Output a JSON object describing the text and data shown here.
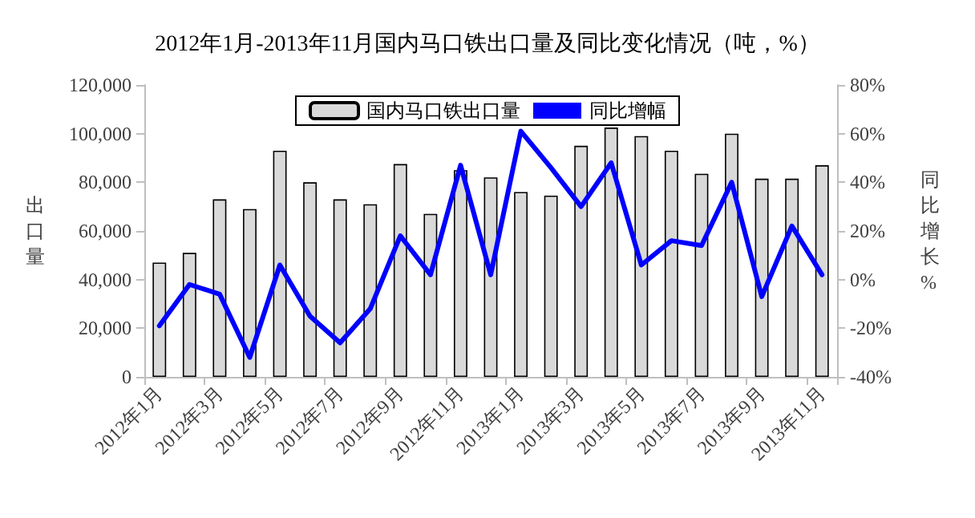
{
  "chart_data": {
    "type": "bar",
    "title": "2012年1月-2013年11月国内马口铁出口量及同比变化情况（吨，%）",
    "ylabel": "出口量",
    "y2label": "同比增长%",
    "categories": [
      "2012年1月",
      null,
      "2012年3月",
      null,
      "2012年5月",
      null,
      "2012年7月",
      null,
      "2012年9月",
      null,
      "2012年11月",
      null,
      "2013年1月",
      null,
      "2013年3月",
      null,
      "2013年5月",
      null,
      "2013年7月",
      null,
      "2013年9月",
      null,
      "2013年11月"
    ],
    "series": [
      {
        "name": "国内马口铁出口量",
        "color": "#d9d9d9",
        "values": [
          47000,
          51000,
          73000,
          69000,
          93000,
          80000,
          73000,
          71000,
          87500,
          67000,
          85000,
          82000,
          76000,
          74500,
          95000,
          102500,
          99000,
          93000,
          83500,
          100000,
          81500,
          81500,
          87000
        ]
      },
      {
        "name": "同比增幅",
        "type": "line",
        "axis": "y2",
        "color": "#0000ff",
        "values": [
          -19,
          -2,
          -6,
          -32,
          6,
          -15,
          -26,
          -12,
          18,
          2,
          47,
          2,
          61,
          46,
          30,
          48,
          6,
          16,
          14,
          40,
          -7,
          22,
          2
        ]
      }
    ],
    "ylim": [
      0,
      120000
    ],
    "yticks": [
      0,
      {
        "value": 20000,
        "label": "20,000"
      },
      {
        "value": 40000,
        "label": "40,000"
      },
      {
        "value": 60000,
        "label": "60,000"
      },
      {
        "value": 80000,
        "label": "80,000"
      },
      {
        "value": 100000,
        "label": "100,000"
      },
      {
        "value": 120000,
        "label": "120,000"
      }
    ],
    "y2lim": [
      -40,
      80
    ],
    "y2ticks": [
      {
        "value": -40,
        "label": "-40%"
      },
      {
        "value": -20,
        "label": "-20%"
      },
      {
        "value": 0,
        "label": "0%"
      },
      {
        "value": 20,
        "label": "20%"
      },
      {
        "value": 40,
        "label": "40%"
      },
      {
        "value": 60,
        "label": "60%"
      },
      {
        "value": 80,
        "label": "80%"
      }
    ],
    "legend": "top",
    "grid": false,
    "marker": "none",
    "line_style": "solid"
  }
}
